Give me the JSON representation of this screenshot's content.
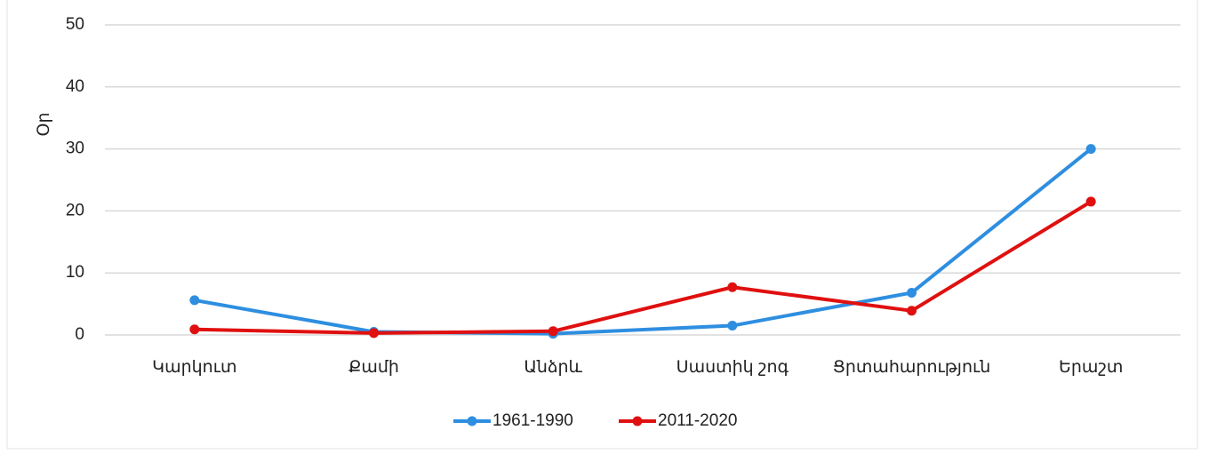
{
  "chart_data": {
    "type": "line",
    "y_label": "Օր",
    "categories": [
      "Կարկուտ",
      "Քամի",
      "Անձրև",
      "Սաստիկ շոգ",
      "Ցրտահարություն",
      "Երաշտ"
    ],
    "series": [
      {
        "name": "1961-1990",
        "color": "#2e8ee0",
        "values": [
          5.6,
          0.5,
          0.2,
          1.5,
          6.8,
          30
        ]
      },
      {
        "name": "2011-2020",
        "color": "#e01010",
        "values": [
          0.9,
          0.3,
          0.6,
          7.7,
          3.9,
          21.5
        ]
      }
    ],
    "ylim": [
      0,
      50
    ],
    "yticks": [
      0,
      10,
      20,
      30,
      40,
      50
    ],
    "grid": true,
    "legend": "bottom"
  }
}
